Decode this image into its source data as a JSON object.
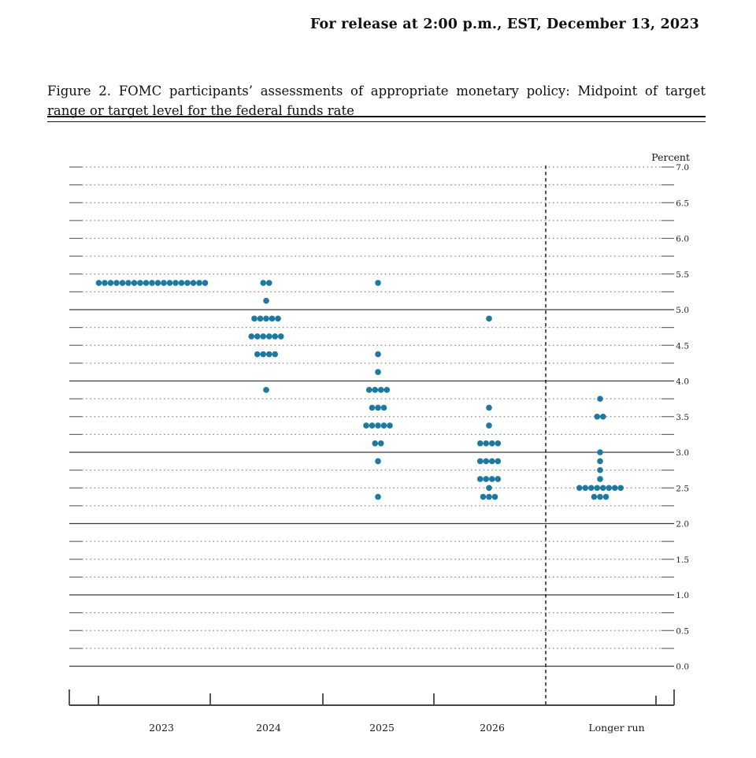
{
  "release_line": "For release at 2:00 p.m., EST, December 13, 2023",
  "figure_title": "Figure 2.  FOMC participants’ assessments of appropriate monetary policy:  Midpoint of target range or target level for the federal funds rate",
  "chart_data": {
    "type": "scatter",
    "subtype": "fomc-dot-plot",
    "ylabel": "Percent",
    "ylim": [
      0.0,
      7.0
    ],
    "grid_step": 0.25,
    "label_step": 0.5,
    "solid_gridlines": [
      0.0,
      1.0,
      2.0,
      3.0,
      4.0,
      5.0
    ],
    "ytick_labels": [
      "7.0",
      "6.5",
      "6.0",
      "5.5",
      "5.0",
      "4.5",
      "4.0",
      "3.5",
      "3.0",
      "2.5",
      "2.0",
      "1.5",
      "1.0",
      "0.5",
      "0.0"
    ],
    "categories": [
      "2023",
      "2024",
      "2025",
      "2026",
      "Longer run"
    ],
    "dot_color": "#1a7aa3",
    "legend_position": "none",
    "grid": true,
    "series": [
      {
        "name": "2023",
        "dots": [
          {
            "value": 5.375,
            "count": 19
          }
        ]
      },
      {
        "name": "2024",
        "dots": [
          {
            "value": 5.375,
            "count": 2
          },
          {
            "value": 5.125,
            "count": 1
          },
          {
            "value": 4.875,
            "count": 5
          },
          {
            "value": 4.625,
            "count": 6
          },
          {
            "value": 4.375,
            "count": 4
          },
          {
            "value": 3.875,
            "count": 1
          }
        ]
      },
      {
        "name": "2025",
        "dots": [
          {
            "value": 5.375,
            "count": 1
          },
          {
            "value": 4.375,
            "count": 1
          },
          {
            "value": 4.125,
            "count": 1
          },
          {
            "value": 3.875,
            "count": 4
          },
          {
            "value": 3.625,
            "count": 3
          },
          {
            "value": 3.375,
            "count": 5
          },
          {
            "value": 3.125,
            "count": 2
          },
          {
            "value": 2.875,
            "count": 1
          },
          {
            "value": 2.375,
            "count": 1
          }
        ]
      },
      {
        "name": "2026",
        "dots": [
          {
            "value": 4.875,
            "count": 1
          },
          {
            "value": 3.625,
            "count": 1
          },
          {
            "value": 3.375,
            "count": 1
          },
          {
            "value": 3.125,
            "count": 4
          },
          {
            "value": 2.875,
            "count": 4
          },
          {
            "value": 2.625,
            "count": 4
          },
          {
            "value": 2.5,
            "count": 1
          },
          {
            "value": 2.375,
            "count": 3
          }
        ]
      },
      {
        "name": "Longer run",
        "dots": [
          {
            "value": 3.75,
            "count": 1
          },
          {
            "value": 3.5,
            "count": 2
          },
          {
            "value": 3.0,
            "count": 1
          },
          {
            "value": 2.875,
            "count": 1
          },
          {
            "value": 2.75,
            "count": 1
          },
          {
            "value": 2.625,
            "count": 1
          },
          {
            "value": 2.5,
            "count": 8
          },
          {
            "value": 2.375,
            "count": 3
          }
        ]
      }
    ]
  }
}
